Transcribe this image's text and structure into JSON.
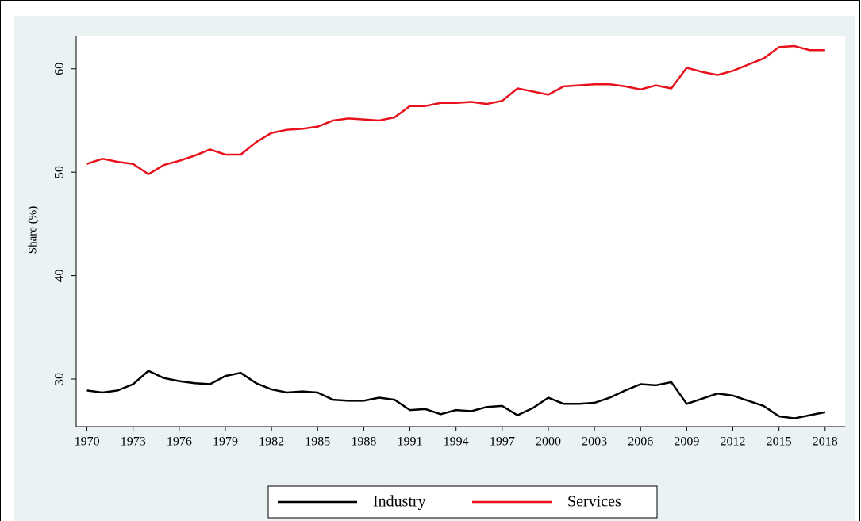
{
  "chart_data": {
    "type": "line",
    "y_label": "Share (%)",
    "x": [
      1970,
      1971,
      1972,
      1973,
      1974,
      1975,
      1976,
      1977,
      1978,
      1979,
      1980,
      1981,
      1982,
      1983,
      1984,
      1985,
      1986,
      1987,
      1988,
      1989,
      1990,
      1991,
      1992,
      1993,
      1994,
      1995,
      1996,
      1997,
      1998,
      1999,
      2000,
      2001,
      2002,
      2003,
      2004,
      2005,
      2006,
      2007,
      2008,
      2009,
      2010,
      2011,
      2012,
      2013,
      2014,
      2015,
      2016,
      2017,
      2018
    ],
    "series": [
      {
        "name": "Industry",
        "color": "#000000",
        "values": [
          28.9,
          28.7,
          28.9,
          29.5,
          30.8,
          30.1,
          29.8,
          29.6,
          29.5,
          30.3,
          30.6,
          29.6,
          29.0,
          28.7,
          28.8,
          28.7,
          28.0,
          27.9,
          27.9,
          28.2,
          28.0,
          27.0,
          27.1,
          26.6,
          27.0,
          26.9,
          27.3,
          27.4,
          26.5,
          27.2,
          28.2,
          27.6,
          27.6,
          27.7,
          28.2,
          28.9,
          29.5,
          29.4,
          29.7,
          27.6,
          28.1,
          28.6,
          28.4,
          27.9,
          27.4,
          26.4,
          26.2,
          26.5,
          26.8
        ]
      },
      {
        "name": "Services",
        "color": "#e8101a",
        "values": [
          50.8,
          51.3,
          51.0,
          50.8,
          49.8,
          50.7,
          51.1,
          51.6,
          52.2,
          51.7,
          51.7,
          52.9,
          53.8,
          54.1,
          54.2,
          54.4,
          55.0,
          55.2,
          55.1,
          55.0,
          55.3,
          56.4,
          56.4,
          56.7,
          56.7,
          56.8,
          56.6,
          56.9,
          58.1,
          57.8,
          57.5,
          58.3,
          58.4,
          58.5,
          58.5,
          58.3,
          58.0,
          58.4,
          58.1,
          60.1,
          59.7,
          59.4,
          59.8,
          60.4,
          61.0,
          62.1,
          62.2,
          61.8,
          61.8
        ]
      }
    ],
    "xlim": [
      1969.3,
      2019.3
    ],
    "xticks": [
      1970,
      1973,
      1976,
      1979,
      1982,
      1985,
      1988,
      1991,
      1994,
      1997,
      2000,
      2003,
      2006,
      2009,
      2012,
      2015,
      2018
    ],
    "ylim": [
      25.4,
      63.2
    ],
    "yticks": [
      30,
      40,
      50,
      60
    ],
    "legend": "bottom"
  }
}
